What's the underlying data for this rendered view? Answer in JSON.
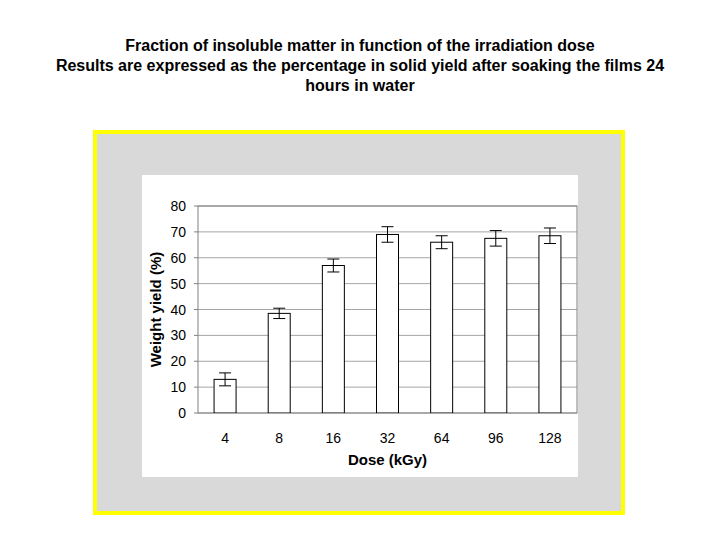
{
  "chart_data": {
    "type": "bar",
    "title": "Fraction of insoluble matter in function of the irradiation dose",
    "subtitle": "Results are expressed as the percentage in solid yield after soaking the films 24 hours in water",
    "x_label": "Dose (kGy)",
    "y_label": "Weight yield (%)",
    "categories": [
      "4",
      "8",
      "16",
      "32",
      "64",
      "96",
      "128"
    ],
    "values": [
      13,
      38.5,
      57,
      69,
      66,
      67.5,
      68.5
    ],
    "errors": [
      2.5,
      2,
      2.5,
      3,
      2.5,
      3,
      3
    ],
    "color": "#ffffff",
    "ylim": [
      0,
      80
    ],
    "yticks": [
      0,
      10,
      20,
      30,
      40,
      50,
      60,
      70,
      80
    ],
    "grid": true
  }
}
